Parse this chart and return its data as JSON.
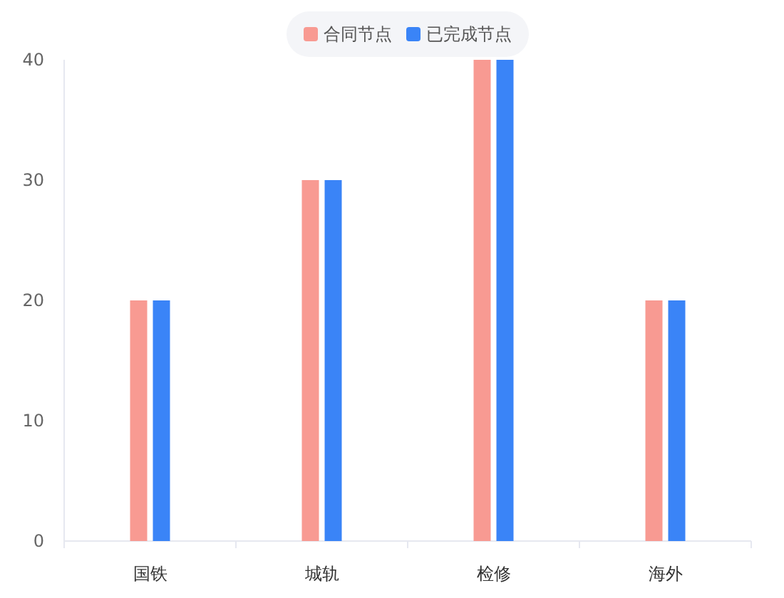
{
  "chart_data": {
    "type": "bar",
    "categories": [
      "国铁",
      "城轨",
      "检修",
      "海外"
    ],
    "series": [
      {
        "name": "合同节点",
        "color": "#f89a92",
        "values": [
          20,
          30,
          40,
          20
        ]
      },
      {
        "name": "已完成节点",
        "color": "#3a84f7",
        "values": [
          20,
          30,
          40,
          20
        ]
      }
    ],
    "ylim": [
      0,
      40
    ],
    "yticks": [
      0,
      10,
      20,
      30,
      40
    ],
    "legend": "top"
  }
}
